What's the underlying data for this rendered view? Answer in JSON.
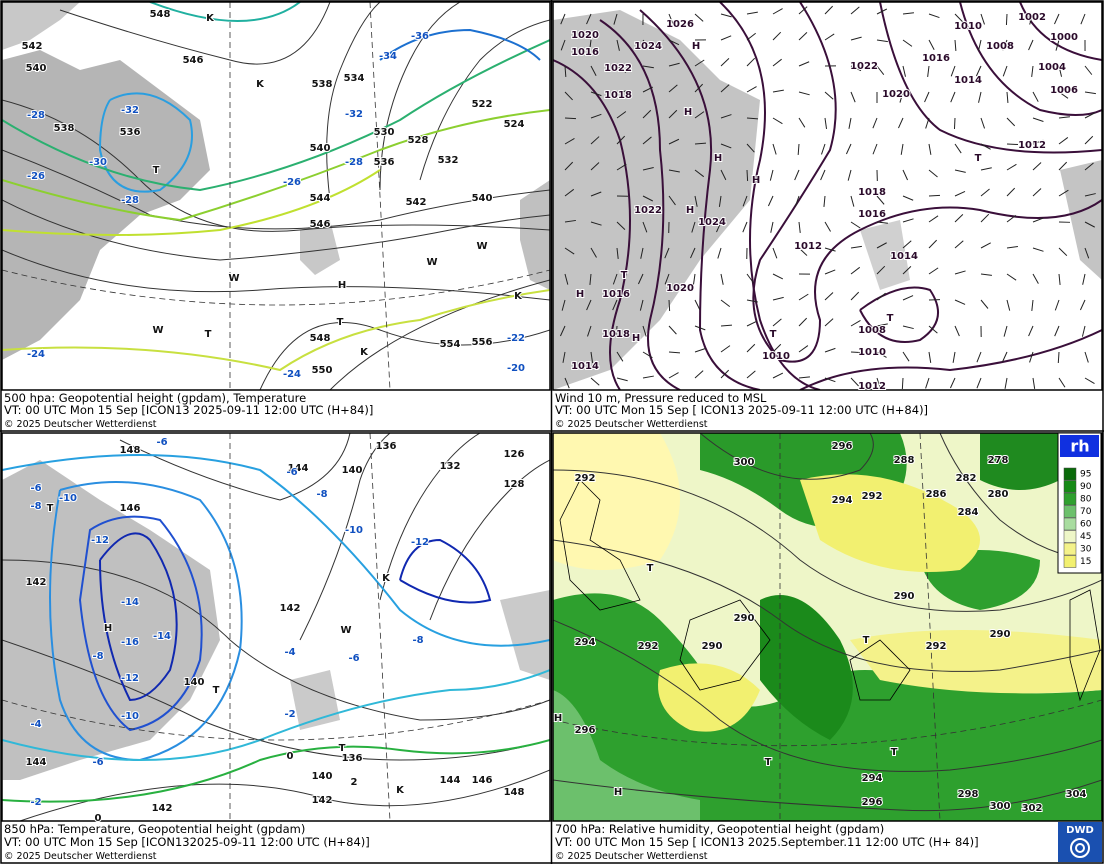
{
  "panels": [
    {
      "title": "500 hpa: Geopotential height (gpdam), Temperature",
      "valid": "VT: 00 UTC Mon  15 Sep [ICON13 2025-09-11 12:00 UTC  (H+84)]",
      "copyright": "© 2025 Deutscher Wetterdienst",
      "labels": [
        "548",
        "542",
        "540",
        "538",
        "536",
        "-32",
        "-30",
        "-28",
        "-26",
        "-28",
        "546",
        "538",
        "534",
        "530",
        "528",
        "-34",
        "-36",
        "-32",
        "-28",
        "-26",
        "540",
        "536",
        "544",
        "542",
        "540",
        "546",
        "548",
        "550",
        "554",
        "556",
        "-22",
        "-20",
        "-24",
        "-24",
        "524",
        "522",
        "532",
        "T",
        "T",
        "H",
        "K",
        "K",
        "W",
        "W",
        "T",
        "K",
        "W",
        "K",
        "W"
      ]
    },
    {
      "title": "Wind 10 m, Pressure reduced to MSL",
      "valid": "VT: 00 UTC Mon  15 Sep [ ICON13 2025-09-11 12:00 UTC  (H+84)]",
      "copyright": "© 2025 Deutscher Wetterdienst",
      "labels": [
        "1026",
        "1020",
        "1024",
        "1016",
        "1022",
        "1018",
        "1022",
        "1020",
        "1016",
        "1014",
        "1010",
        "1008",
        "1002",
        "1000",
        "1004",
        "1006",
        "1012",
        "1018",
        "1016",
        "1014",
        "1012",
        "1022",
        "1024",
        "1016",
        "1020",
        "1018",
        "1014",
        "1010",
        "1008",
        "1010",
        "1012",
        "H",
        "H",
        "H",
        "H",
        "H",
        "T",
        "T",
        "T",
        "H",
        "T",
        "H"
      ]
    },
    {
      "title": "850 hPa:  Temperature, Geopotential height (gpdam)",
      "valid": "VT: 00 UTC Mon  15 Sep [ICON132025-09-11 12:00 UTC  (H+84)]",
      "copyright": "© 2025 Deutscher Wetterdienst",
      "labels": [
        "148",
        "-6",
        "144",
        "140",
        "136",
        "132",
        "128",
        "126",
        "-6",
        "-8",
        "-10",
        "146",
        "-12",
        "-14",
        "-16",
        "-14",
        "-12",
        "-10",
        "142",
        "-6",
        "-8",
        "-10",
        "-12",
        "142",
        "-4",
        "-6",
        "-8",
        "140",
        "-2",
        "0",
        "136",
        "140",
        "142",
        "144",
        "146",
        "148",
        "2",
        "-4",
        "-6",
        "-2",
        "0",
        "144",
        "142",
        "-8",
        "T",
        "H",
        "T",
        "T",
        "K",
        "W",
        "K"
      ]
    },
    {
      "title": "700 hPa:  Relative humidity, Geopotential height (gpdam)",
      "valid": "VT: 00 UTC Mon  15 Sep [ ICON13  2025.September.11 12:00 UTC  (H+ 84)]",
      "copyright": "© 2025 Deutscher Wetterdienst",
      "labels": [
        "296",
        "300",
        "288",
        "286",
        "282",
        "278",
        "280",
        "284",
        "292",
        "294",
        "292",
        "290",
        "292",
        "290",
        "290",
        "290",
        "292",
        "294",
        "296",
        "294",
        "296",
        "298",
        "300",
        "302",
        "304",
        "T",
        "T",
        "T",
        "T",
        "H",
        "H"
      ]
    }
  ],
  "legend": {
    "title": "rh",
    "levels": [
      95,
      90,
      80,
      70,
      60,
      45,
      30,
      15
    ]
  },
  "logo": "DWD"
}
